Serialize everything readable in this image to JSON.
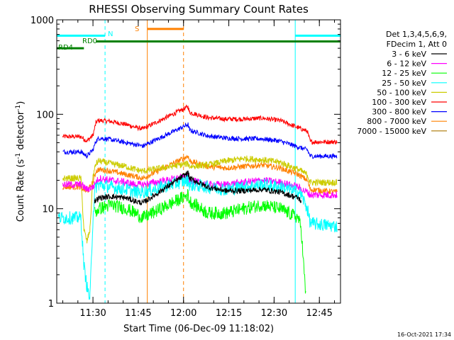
{
  "chart_data": {
    "type": "line",
    "title": "RHESSI Observing Summary Count Rates",
    "xlabel": "Start Time (06-Dec-09 11:18:02)",
    "ylabel_main": "Count Rate (s",
    "ylabel_sup1": "-1",
    "ylabel_mid": " detector",
    "ylabel_sup2": "-1",
    "ylabel_end": ")",
    "x_axis_unit": "minutes after 11:18:02",
    "xlim": [
      0,
      94
    ],
    "ylim": [
      1,
      1000
    ],
    "yscale": "log",
    "x_ticks": [
      {
        "label": "11:30",
        "value": 12
      },
      {
        "label": "11:45",
        "value": 27
      },
      {
        "label": "12:00",
        "value": 42
      },
      {
        "label": "12:15",
        "value": 57
      },
      {
        "label": "12:30",
        "value": 72
      },
      {
        "label": "12:45",
        "value": 87
      }
    ],
    "y_ticks": [
      {
        "label": "1",
        "value": 1
      },
      {
        "label": "10",
        "value": 10
      },
      {
        "label": "100",
        "value": 100
      },
      {
        "label": "1000",
        "value": 1000
      }
    ],
    "legend": {
      "position": "right",
      "header1": "Det 1,3,4,5,6,9,",
      "header2": "FDecim 1, Att 0",
      "entries": [
        {
          "label": "3 - 6 keV",
          "color": "#000000"
        },
        {
          "label": "6 - 12 keV",
          "color": "#ff00ff"
        },
        {
          "label": "12 - 25 keV",
          "color": "#00ff00"
        },
        {
          "label": "25 - 50 keV",
          "color": "#00ffff"
        },
        {
          "label": "50 - 100 keV",
          "color": "#cccc00"
        },
        {
          "label": "100 - 300 keV",
          "color": "#ff0000"
        },
        {
          "label": "300 - 800 keV",
          "color": "#0000ff"
        },
        {
          "label": "800 - 7000 keV",
          "color": "#ff8000"
        },
        {
          "label": "7000 - 15000 keV",
          "color": "#aa7700"
        }
      ]
    },
    "flags": [
      {
        "label": "N",
        "color": "#00ffff",
        "y": 680,
        "segments": [
          [
            0,
            16
          ],
          [
            79,
            94
          ]
        ]
      },
      {
        "label": "S",
        "color": "#ff8000",
        "y": 800,
        "segments": [
          [
            30,
            42
          ]
        ]
      },
      {
        "label": "RD0",
        "color": "#008000",
        "y": 590,
        "segments": [
          [
            13,
            94
          ]
        ]
      },
      {
        "label": "RD4",
        "color": "#008000",
        "y": 500,
        "segments": [
          [
            0,
            9
          ]
        ]
      }
    ],
    "vlines": [
      {
        "x": 0,
        "color": "#00ffff",
        "style": "solid"
      },
      {
        "x": 16,
        "color": "#00ffff",
        "style": "dashed"
      },
      {
        "x": 30,
        "color": "#ff8000",
        "style": "solid"
      },
      {
        "x": 42,
        "color": "#ff8000",
        "style": "dashed"
      },
      {
        "x": 79,
        "color": "#00ffff",
        "style": "solid"
      },
      {
        "x": 94,
        "color": "#00ffff",
        "style": "dashed"
      }
    ],
    "series": [
      {
        "name": "100 - 300 keV",
        "color": "#ff0000",
        "noise": 0.025,
        "x": [
          2,
          7,
          8,
          10,
          12,
          13,
          14,
          18,
          23,
          26,
          28.5,
          43.5,
          44,
          50,
          56,
          62,
          68,
          74,
          80,
          81,
          83,
          84,
          93
        ],
        "y": [
          58,
          58,
          58,
          52,
          60,
          82,
          86,
          84,
          78,
          73,
          70,
          120,
          105,
          92,
          89,
          89,
          91,
          86,
          72,
          70,
          66,
          51,
          51
        ]
      },
      {
        "name": "300 - 800 keV",
        "color": "#0000ff",
        "noise": 0.025,
        "x": [
          2,
          7,
          8,
          10,
          12,
          13,
          14,
          18,
          23,
          26,
          28.5,
          43.5,
          44,
          50,
          56,
          62,
          68,
          74,
          80,
          81,
          83,
          84,
          93
        ],
        "y": [
          40,
          40,
          40,
          36,
          42,
          52,
          56,
          54,
          50,
          48,
          46,
          78,
          68,
          59,
          56,
          55,
          55,
          52,
          45,
          44,
          42,
          36,
          36
        ]
      },
      {
        "name": "800 - 7000 keV",
        "color": "#ff8000",
        "noise": 0.03,
        "x": [
          2,
          7,
          8,
          10,
          12,
          13,
          14,
          18,
          23,
          26,
          28.5,
          43.5,
          44,
          50,
          56,
          62,
          68,
          74,
          80,
          81,
          83,
          84,
          93
        ],
        "y": [
          17,
          17,
          17,
          15,
          19,
          25,
          26,
          25,
          23,
          22,
          21,
          36,
          32,
          28,
          27,
          28,
          29,
          27,
          23,
          22,
          20,
          16,
          15
        ]
      },
      {
        "name": "50 - 100 keV",
        "color": "#cccc00",
        "noise": 0.035,
        "x": [
          2,
          7,
          8,
          9,
          10,
          11,
          12,
          13,
          14,
          18,
          23,
          26,
          28.5,
          43.5,
          44,
          50,
          56,
          62,
          68,
          74,
          80,
          81,
          83,
          84,
          93
        ],
        "y": [
          21,
          21,
          21,
          6,
          4.5,
          6,
          22,
          30,
          32,
          30,
          28,
          26,
          25,
          30,
          28,
          29,
          32,
          34,
          33,
          31,
          26,
          25,
          23,
          19,
          19
        ]
      },
      {
        "name": "6 - 12 keV",
        "color": "#ff00ff",
        "noise": 0.04,
        "x": [
          2,
          7,
          8,
          10,
          12,
          13,
          14,
          18,
          23,
          26,
          28.5,
          43.5,
          44,
          50,
          56,
          62,
          68,
          74,
          80,
          81,
          83,
          84,
          93
        ],
        "y": [
          18,
          18,
          18,
          16,
          17,
          19,
          21,
          20,
          19,
          18,
          18,
          22,
          20,
          18,
          18,
          19,
          20,
          19,
          17,
          16,
          15,
          14,
          14
        ]
      },
      {
        "name": "25 - 50 keV",
        "color": "#00ffff",
        "noise": 0.07,
        "x": [
          0.5,
          7,
          8,
          9,
          10,
          11,
          12,
          12.5,
          13,
          14,
          18,
          23,
          26,
          28.5,
          43.5,
          44,
          50,
          56,
          62,
          68,
          74,
          80,
          81,
          83,
          84,
          93
        ],
        "y": [
          8,
          8,
          8,
          2.5,
          1.5,
          1.1,
          8,
          14,
          17,
          18,
          17,
          16,
          15,
          15,
          20,
          18,
          17,
          16,
          17,
          18,
          17,
          15,
          14,
          10,
          7,
          6.5
        ]
      },
      {
        "name": "3 - 6 keV",
        "color": "#000000",
        "noise": 0.03,
        "x": [
          12.5,
          14,
          18,
          23,
          26,
          28.5,
          43.5,
          44,
          50,
          56,
          62,
          68,
          74,
          80,
          81
        ],
        "y": [
          12,
          13,
          13.5,
          13,
          12,
          11.5,
          24,
          21,
          17,
          15.5,
          15.5,
          16,
          15,
          13,
          12
        ]
      },
      {
        "name": "12 - 25 keV",
        "color": "#00ff00",
        "noise": 0.07,
        "x": [
          12.5,
          14,
          18,
          23,
          26,
          28.5,
          43.5,
          44,
          50,
          56,
          62,
          68,
          74,
          80,
          81,
          82,
          82.5
        ],
        "y": [
          9,
          10,
          11,
          10,
          9,
          8,
          14,
          12,
          9,
          9,
          10,
          11,
          10,
          8,
          6,
          2,
          1.2
        ]
      }
    ]
  }
}
